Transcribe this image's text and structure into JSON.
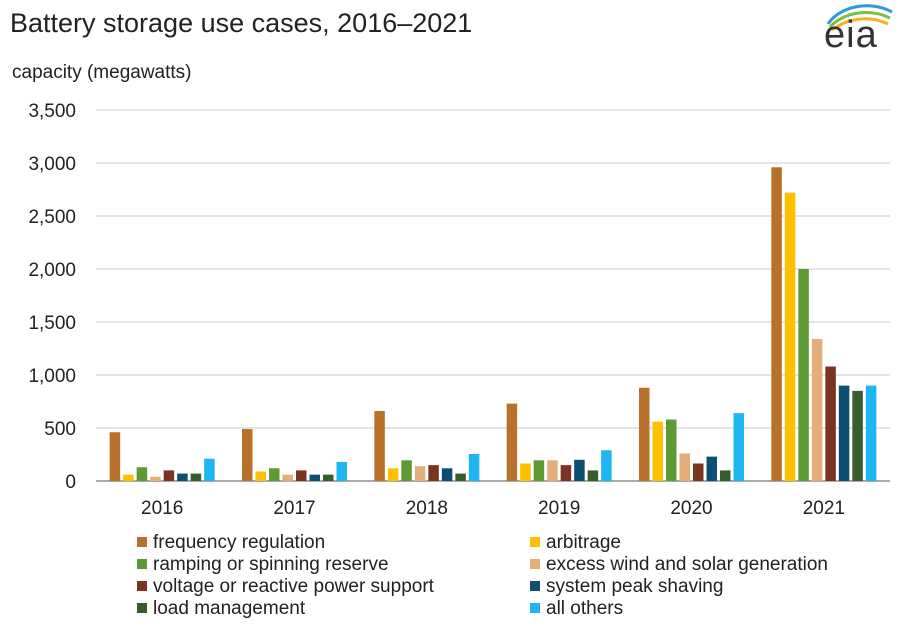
{
  "title": "Battery storage use cases, 2016–2021",
  "logo_text": "eia",
  "chart_data": {
    "type": "bar",
    "title": "Battery storage use cases, 2016–2021",
    "ylabel": "capacity (megawatts)",
    "xlabel": "",
    "ylim": [
      0,
      3500
    ],
    "yticks": [
      0,
      500,
      1000,
      1500,
      2000,
      2500,
      3000,
      3500
    ],
    "ytick_labels": [
      "0",
      "500",
      "1,000",
      "1,500",
      "2,000",
      "2,500",
      "3,000",
      "3,500"
    ],
    "grid": true,
    "legend_placement": "bottom",
    "categories": [
      "2016",
      "2017",
      "2018",
      "2019",
      "2020",
      "2021"
    ],
    "series": [
      {
        "name": "frequency regulation",
        "color": "#B8712A",
        "values": [
          460,
          490,
          660,
          730,
          880,
          2960
        ]
      },
      {
        "name": "arbitrage",
        "color": "#FFC000",
        "values": [
          60,
          90,
          120,
          165,
          560,
          2720
        ]
      },
      {
        "name": "ramping or spinning reserve",
        "color": "#5E9A34",
        "values": [
          130,
          120,
          195,
          195,
          580,
          2000
        ]
      },
      {
        "name": "excess wind and solar generation",
        "color": "#E3AE7A",
        "values": [
          40,
          60,
          140,
          195,
          260,
          1340
        ]
      },
      {
        "name": "voltage or reactive power support",
        "color": "#7B3322",
        "values": [
          100,
          100,
          150,
          150,
          165,
          1080
        ]
      },
      {
        "name": "system peak shaving",
        "color": "#0E4F71",
        "values": [
          70,
          60,
          120,
          200,
          230,
          900
        ]
      },
      {
        "name": "load management",
        "color": "#375E2A",
        "values": [
          70,
          60,
          70,
          100,
          100,
          850
        ]
      },
      {
        "name": "all others",
        "color": "#1DB6F2",
        "values": [
          210,
          180,
          255,
          290,
          640,
          900
        ]
      }
    ]
  }
}
